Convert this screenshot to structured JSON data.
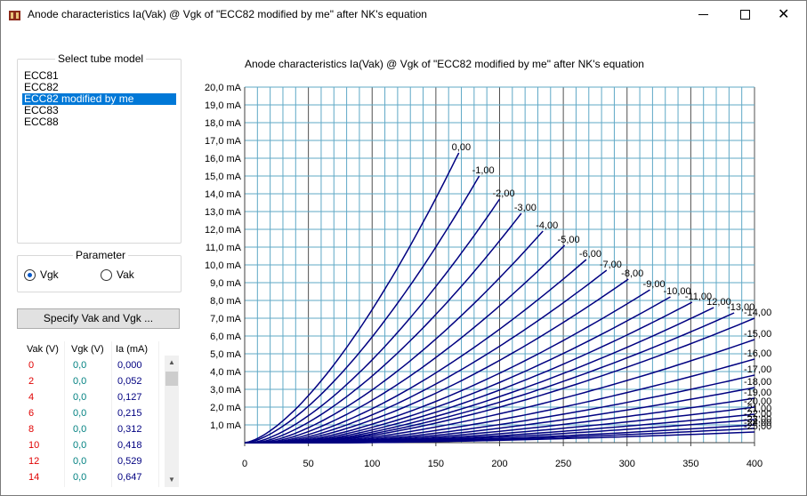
{
  "window": {
    "title": "Anode characteristics Ia(Vak) @ Vgk of \"ECC82 modified by me\" after NK's equation",
    "icons": [
      "app-icon",
      "minimize-icon",
      "maximize-icon",
      "close-icon"
    ]
  },
  "tube_panel": {
    "legend": "Select tube model",
    "items": [
      "ECC81",
      "ECC82",
      "ECC82 modified by me",
      "ECC83",
      "ECC88"
    ],
    "selected": "ECC82 modified by me"
  },
  "parameter_panel": {
    "legend": "Parameter",
    "options": [
      "Vgk",
      "Vak"
    ],
    "selected": "Vgk"
  },
  "specify_button": "Specify Vak and Vgk ...",
  "table": {
    "headers": [
      "Vak (V)",
      "Vgk (V)",
      "Ia (mA)"
    ],
    "rows": [
      [
        "0",
        "0,0",
        "0,000"
      ],
      [
        "2",
        "0,0",
        "0,052"
      ],
      [
        "4",
        "0,0",
        "0,127"
      ],
      [
        "6",
        "0,0",
        "0,215"
      ],
      [
        "8",
        "0,0",
        "0,312"
      ],
      [
        "10",
        "0,0",
        "0,418"
      ],
      [
        "12",
        "0,0",
        "0,529"
      ],
      [
        "14",
        "0,0",
        "0,647"
      ]
    ],
    "colors": {
      "vak": "#e00000",
      "vgk": "#008080",
      "ia": "#000080"
    }
  },
  "chart_data": {
    "type": "line",
    "title": "Anode characteristics Ia(Vak) @ Vgk of \"ECC82 modified by me\" after NK's equation",
    "x_ticks": [
      "0",
      "50",
      "100",
      "150",
      "200",
      "250",
      "300",
      "350",
      "400"
    ],
    "y_ticks": [
      "1,0 mA",
      "2,0 mA",
      "3,0 mA",
      "4,0 mA",
      "5,0 mA",
      "6,0 mA",
      "7,0 mA",
      "8,0 mA",
      "9,0 mA",
      "10,0 mA",
      "11,0 mA",
      "12,0 mA",
      "13,0 mA",
      "14,0 mA",
      "15,0 mA",
      "16,0 mA",
      "17,0 mA",
      "18,0 mA",
      "19,0 mA",
      "20,0 mA"
    ],
    "xlim": [
      0,
      400
    ],
    "ylim": [
      0,
      20
    ],
    "grid": true,
    "line_color": "#000080",
    "series": [
      {
        "name": "0,00",
        "end_vak": 168,
        "end_ia": 16.3
      },
      {
        "name": "-1,00",
        "end_vak": 184,
        "end_ia": 15.0
      },
      {
        "name": "-2,00",
        "end_vak": 200,
        "end_ia": 13.7
      },
      {
        "name": "-3,00",
        "end_vak": 217,
        "end_ia": 12.9
      },
      {
        "name": "-4,00",
        "end_vak": 234,
        "end_ia": 11.9
      },
      {
        "name": "-5,00",
        "end_vak": 251,
        "end_ia": 11.1
      },
      {
        "name": "-6,00",
        "end_vak": 268,
        "end_ia": 10.3
      },
      {
        "name": "-7,00",
        "end_vak": 284,
        "end_ia": 9.7
      },
      {
        "name": "-8,00",
        "end_vak": 301,
        "end_ia": 9.2
      },
      {
        "name": "-9,00",
        "end_vak": 318,
        "end_ia": 8.6
      },
      {
        "name": "-10,00",
        "end_vak": 334,
        "end_ia": 8.2
      },
      {
        "name": "-11,00",
        "end_vak": 351,
        "end_ia": 7.9
      },
      {
        "name": "12,00",
        "end_vak": 368,
        "end_ia": 7.6
      },
      {
        "name": "-13,00",
        "end_vak": 384,
        "end_ia": 7.3
      },
      {
        "name": "-14,00",
        "end_vak": 400,
        "end_ia": 7.0
      },
      {
        "name": "-15,00",
        "end_vak": 400,
        "end_ia": 5.8
      },
      {
        "name": "-16,00",
        "end_vak": 400,
        "end_ia": 4.7
      },
      {
        "name": "-17,00",
        "end_vak": 400,
        "end_ia": 3.8
      },
      {
        "name": "-18,00",
        "end_vak": 400,
        "end_ia": 3.1
      },
      {
        "name": "-19,00",
        "end_vak": 400,
        "end_ia": 2.5
      },
      {
        "name": "-20,00",
        "end_vak": 400,
        "end_ia": 2.0
      },
      {
        "name": "-21,00",
        "end_vak": 400,
        "end_ia": 1.6
      },
      {
        "name": "-22,00",
        "end_vak": 400,
        "end_ia": 1.3
      },
      {
        "name": "-23,00",
        "end_vak": 400,
        "end_ia": 1.0
      },
      {
        "name": "-24,00",
        "end_vak": 400,
        "end_ia": 0.8
      },
      {
        "name": "-25,00",
        "end_vak": 400,
        "end_ia": 0.6
      }
    ]
  }
}
